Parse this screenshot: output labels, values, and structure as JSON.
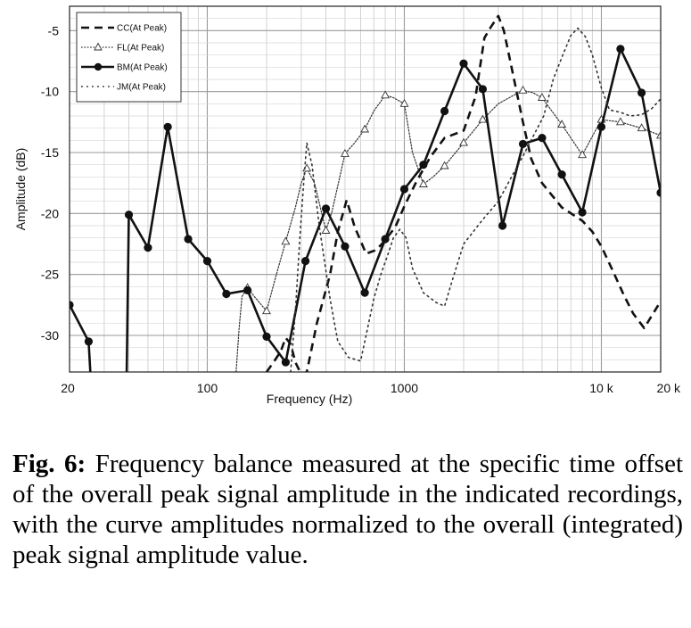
{
  "chart_data": {
    "type": "line",
    "xlabel": "Frequency (Hz)",
    "ylabel": "Amplitude (dB)",
    "x_scale": "log",
    "xlim": [
      20,
      20000
    ],
    "ylim": [
      -33,
      -3
    ],
    "grid": true,
    "legend_position": "top-left",
    "x_ticks": [
      {
        "value": 20,
        "label": "20"
      },
      {
        "value": 100,
        "label": "100"
      },
      {
        "value": 1000,
        "label": "1000"
      },
      {
        "value": 10000,
        "label": "10 k"
      },
      {
        "value": 20000,
        "label": "20 k"
      }
    ],
    "y_ticks": [
      {
        "value": -5,
        "label": "-5"
      },
      {
        "value": -10,
        "label": "-10"
      },
      {
        "value": -15,
        "label": "-15"
      },
      {
        "value": -20,
        "label": "-20"
      },
      {
        "value": -25,
        "label": "-25"
      },
      {
        "value": -30,
        "label": "-30"
      }
    ],
    "series": [
      {
        "name": "CC(At Peak)",
        "style": "dashed",
        "marker": "none",
        "points": [
          [
            200,
            -33
          ],
          [
            217,
            -32.2
          ],
          [
            236,
            -31.3
          ],
          [
            250,
            -30.2
          ],
          [
            265,
            -30.7
          ],
          [
            280,
            -32.2
          ],
          [
            300,
            -33.2
          ],
          [
            320,
            -33
          ],
          [
            360,
            -29
          ],
          [
            420,
            -25
          ],
          [
            460,
            -21.5
          ],
          [
            510,
            -18.9
          ],
          [
            560,
            -21.1
          ],
          [
            640,
            -23.3
          ],
          [
            720,
            -23
          ],
          [
            790,
            -22.3
          ],
          [
            900,
            -21.1
          ],
          [
            1000,
            -19.4
          ],
          [
            1150,
            -17.4
          ],
          [
            1350,
            -15.4
          ],
          [
            1600,
            -13.8
          ],
          [
            2000,
            -13.2
          ],
          [
            2300,
            -10.4
          ],
          [
            2550,
            -5.6
          ],
          [
            2750,
            -4.7
          ],
          [
            3000,
            -3.8
          ],
          [
            3200,
            -5
          ],
          [
            3500,
            -8
          ],
          [
            4000,
            -12.5
          ],
          [
            4400,
            -15.5
          ],
          [
            5000,
            -17.5
          ],
          [
            6300,
            -19.5
          ],
          [
            8000,
            -20.6
          ],
          [
            9000,
            -21.5
          ],
          [
            10000,
            -22.7
          ],
          [
            11500,
            -24.8
          ],
          [
            13000,
            -26.7
          ],
          [
            14500,
            -28.2
          ],
          [
            16500,
            -29.4
          ],
          [
            20000,
            -27.2
          ]
        ]
      },
      {
        "name": "FL(At Peak)",
        "style": "dotted",
        "marker": "triangle-open",
        "points": [
          [
            140,
            -33
          ],
          [
            145,
            -29.5
          ],
          [
            150,
            -26.8
          ],
          [
            160,
            -26.1
          ],
          [
            175,
            -26.9
          ],
          [
            200,
            -28
          ],
          [
            220,
            -25.5
          ],
          [
            250,
            -22.3
          ],
          [
            280,
            -19.5
          ],
          [
            300,
            -17.5
          ],
          [
            320,
            -16.3
          ],
          [
            350,
            -17.5
          ],
          [
            400,
            -21.4
          ],
          [
            430,
            -19.8
          ],
          [
            500,
            -15.1
          ],
          [
            560,
            -14.2
          ],
          [
            630,
            -13.1
          ],
          [
            700,
            -11.6
          ],
          [
            800,
            -10.3
          ],
          [
            880,
            -10.5
          ],
          [
            1000,
            -11
          ],
          [
            1100,
            -15
          ],
          [
            1250,
            -17.6
          ],
          [
            1400,
            -17
          ],
          [
            1600,
            -16.1
          ],
          [
            2000,
            -14.2
          ],
          [
            2500,
            -12.3
          ],
          [
            3000,
            -11
          ],
          [
            3500,
            -10.4
          ],
          [
            4000,
            -9.9
          ],
          [
            4500,
            -10.1
          ],
          [
            5000,
            -10.5
          ],
          [
            6300,
            -12.7
          ],
          [
            8000,
            -15.2
          ],
          [
            10000,
            -12.3
          ],
          [
            12500,
            -12.5
          ],
          [
            16000,
            -13
          ],
          [
            20000,
            -13.6
          ]
        ]
      },
      {
        "name": "BM(At Peak)",
        "style": "solid",
        "marker": "circle-filled",
        "segments": [
          [
            [
              20,
              -27.5
            ],
            [
              25,
              -30.5
            ],
            [
              25.5,
              -33
            ]
          ],
          [
            [
              39,
              -33
            ],
            [
              40,
              -20.1
            ],
            [
              50,
              -22.8
            ],
            [
              63,
              -12.9
            ],
            [
              80,
              -22.1
            ],
            [
              100,
              -23.9
            ],
            [
              125,
              -26.6
            ],
            [
              160,
              -26.3
            ],
            [
              200,
              -30.1
            ],
            [
              250,
              -32.2
            ],
            [
              315,
              -23.9
            ],
            [
              400,
              -19.6
            ],
            [
              500,
              -22.7
            ],
            [
              630,
              -26.5
            ],
            [
              800,
              -22.1
            ],
            [
              1000,
              -18
            ],
            [
              1250,
              -16
            ],
            [
              1600,
              -11.6
            ],
            [
              2000,
              -7.7
            ],
            [
              2500,
              -9.8
            ],
            [
              3150,
              -21
            ],
            [
              4000,
              -14.3
            ],
            [
              5000,
              -13.8
            ],
            [
              6300,
              -16.8
            ],
            [
              8000,
              -19.9
            ],
            [
              10000,
              -12.9
            ],
            [
              12500,
              -6.5
            ],
            [
              16000,
              -10.1
            ],
            [
              20000,
              -18.3
            ]
          ]
        ],
        "marked": [
          [
            20,
            -27.5
          ],
          [
            25,
            -30.5
          ],
          [
            40,
            -20.1
          ],
          [
            50,
            -22.8
          ],
          [
            63,
            -12.9
          ],
          [
            80,
            -22.1
          ],
          [
            100,
            -23.9
          ],
          [
            125,
            -26.6
          ],
          [
            160,
            -26.3
          ],
          [
            200,
            -30.1
          ],
          [
            250,
            -32.2
          ],
          [
            315,
            -23.9
          ],
          [
            400,
            -19.6
          ],
          [
            500,
            -22.7
          ],
          [
            630,
            -26.5
          ],
          [
            800,
            -22.1
          ],
          [
            1000,
            -18
          ],
          [
            1250,
            -16
          ],
          [
            1600,
            -11.6
          ],
          [
            2000,
            -7.7
          ],
          [
            2500,
            -9.8
          ],
          [
            3150,
            -21
          ],
          [
            4000,
            -14.3
          ],
          [
            5000,
            -13.8
          ],
          [
            6300,
            -16.8
          ],
          [
            8000,
            -19.9
          ],
          [
            10000,
            -12.9
          ],
          [
            12500,
            -6.5
          ],
          [
            16000,
            -10.1
          ],
          [
            20000,
            -18.3
          ]
        ]
      },
      {
        "name": "JM(At Peak)",
        "style": "sparse-dotted",
        "marker": "none",
        "points": [
          [
            265,
            -33
          ],
          [
            280,
            -28
          ],
          [
            295,
            -22
          ],
          [
            310,
            -17
          ],
          [
            320,
            -14.2
          ],
          [
            340,
            -16
          ],
          [
            370,
            -21
          ],
          [
            420,
            -27
          ],
          [
            460,
            -30.5
          ],
          [
            520,
            -31.8
          ],
          [
            600,
            -32.1
          ],
          [
            640,
            -30
          ],
          [
            700,
            -27
          ],
          [
            760,
            -25
          ],
          [
            820,
            -23.5
          ],
          [
            880,
            -22
          ],
          [
            950,
            -21.3
          ],
          [
            1020,
            -22
          ],
          [
            1100,
            -24.5
          ],
          [
            1250,
            -26.5
          ],
          [
            1450,
            -27.3
          ],
          [
            1600,
            -27.6
          ],
          [
            1750,
            -25.5
          ],
          [
            2000,
            -22.5
          ],
          [
            2500,
            -20.5
          ],
          [
            3000,
            -19
          ],
          [
            3500,
            -17
          ],
          [
            4000,
            -15.3
          ],
          [
            4600,
            -13.4
          ],
          [
            5100,
            -12
          ],
          [
            5700,
            -9
          ],
          [
            6300,
            -7.2
          ],
          [
            7000,
            -5.4
          ],
          [
            7600,
            -4.8
          ],
          [
            8300,
            -5.5
          ],
          [
            9000,
            -7
          ],
          [
            10000,
            -9.7
          ],
          [
            11000,
            -11.5
          ],
          [
            12500,
            -11.7
          ],
          [
            14000,
            -12
          ],
          [
            16000,
            -11.9
          ],
          [
            18000,
            -11.4
          ],
          [
            20000,
            -10.6
          ]
        ]
      }
    ]
  },
  "caption": {
    "label": "Fig. 6:",
    "text": "Frequency balance measured at the specific time offset of the overall peak signal amplitude in the indicated recordings, with the curve amplitudes normalized to the overall (integrated) peak signal amplitude value."
  }
}
